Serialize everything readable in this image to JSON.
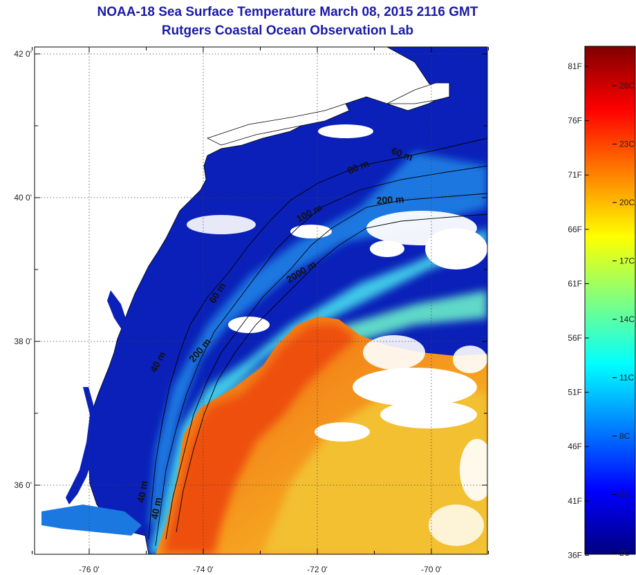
{
  "header": {
    "title": "NOAA-18 Sea Surface Temperature March 08, 2015 2116 GMT",
    "subtitle": "Rutgers Coastal Ocean Observation Lab"
  },
  "map": {
    "lat_ticks": [
      {
        "value": 42,
        "label": "42 0'"
      },
      {
        "value": 40,
        "label": "40 0'"
      },
      {
        "value": 38,
        "label": "38 0'"
      },
      {
        "value": 36,
        "label": "36 0'"
      }
    ],
    "lon_ticks": [
      {
        "value": -76,
        "label": "-76 0'"
      },
      {
        "value": -74,
        "label": "-74 0'"
      },
      {
        "value": -72,
        "label": "-72 0'"
      },
      {
        "value": -70,
        "label": "-70 0'"
      }
    ],
    "contour_labels": [
      "60 m",
      "80 m",
      "200 m",
      "100 m",
      "2000 m",
      "60 m",
      "40 m",
      "200 m",
      "40 m",
      "40 m"
    ],
    "colors": {
      "cold": "#0a1fb0",
      "warm": "#ee5a10",
      "land": "#ffffff",
      "coastline": "#000000"
    }
  },
  "colorbar": {
    "fahrenheit": [
      "81F",
      "76F",
      "71F",
      "66F",
      "61F",
      "56F",
      "51F",
      "46F",
      "41F",
      "36F"
    ],
    "celsius": [
      "26C",
      "23C",
      "20C",
      "17C",
      "14C",
      "11C",
      "8C",
      "5C",
      "2C"
    ],
    "gradient": [
      "#00007f",
      "#0000ff",
      "#0080ff",
      "#00ffff",
      "#80ff80",
      "#ffff00",
      "#ff8000",
      "#ff0000",
      "#7f0000"
    ]
  }
}
